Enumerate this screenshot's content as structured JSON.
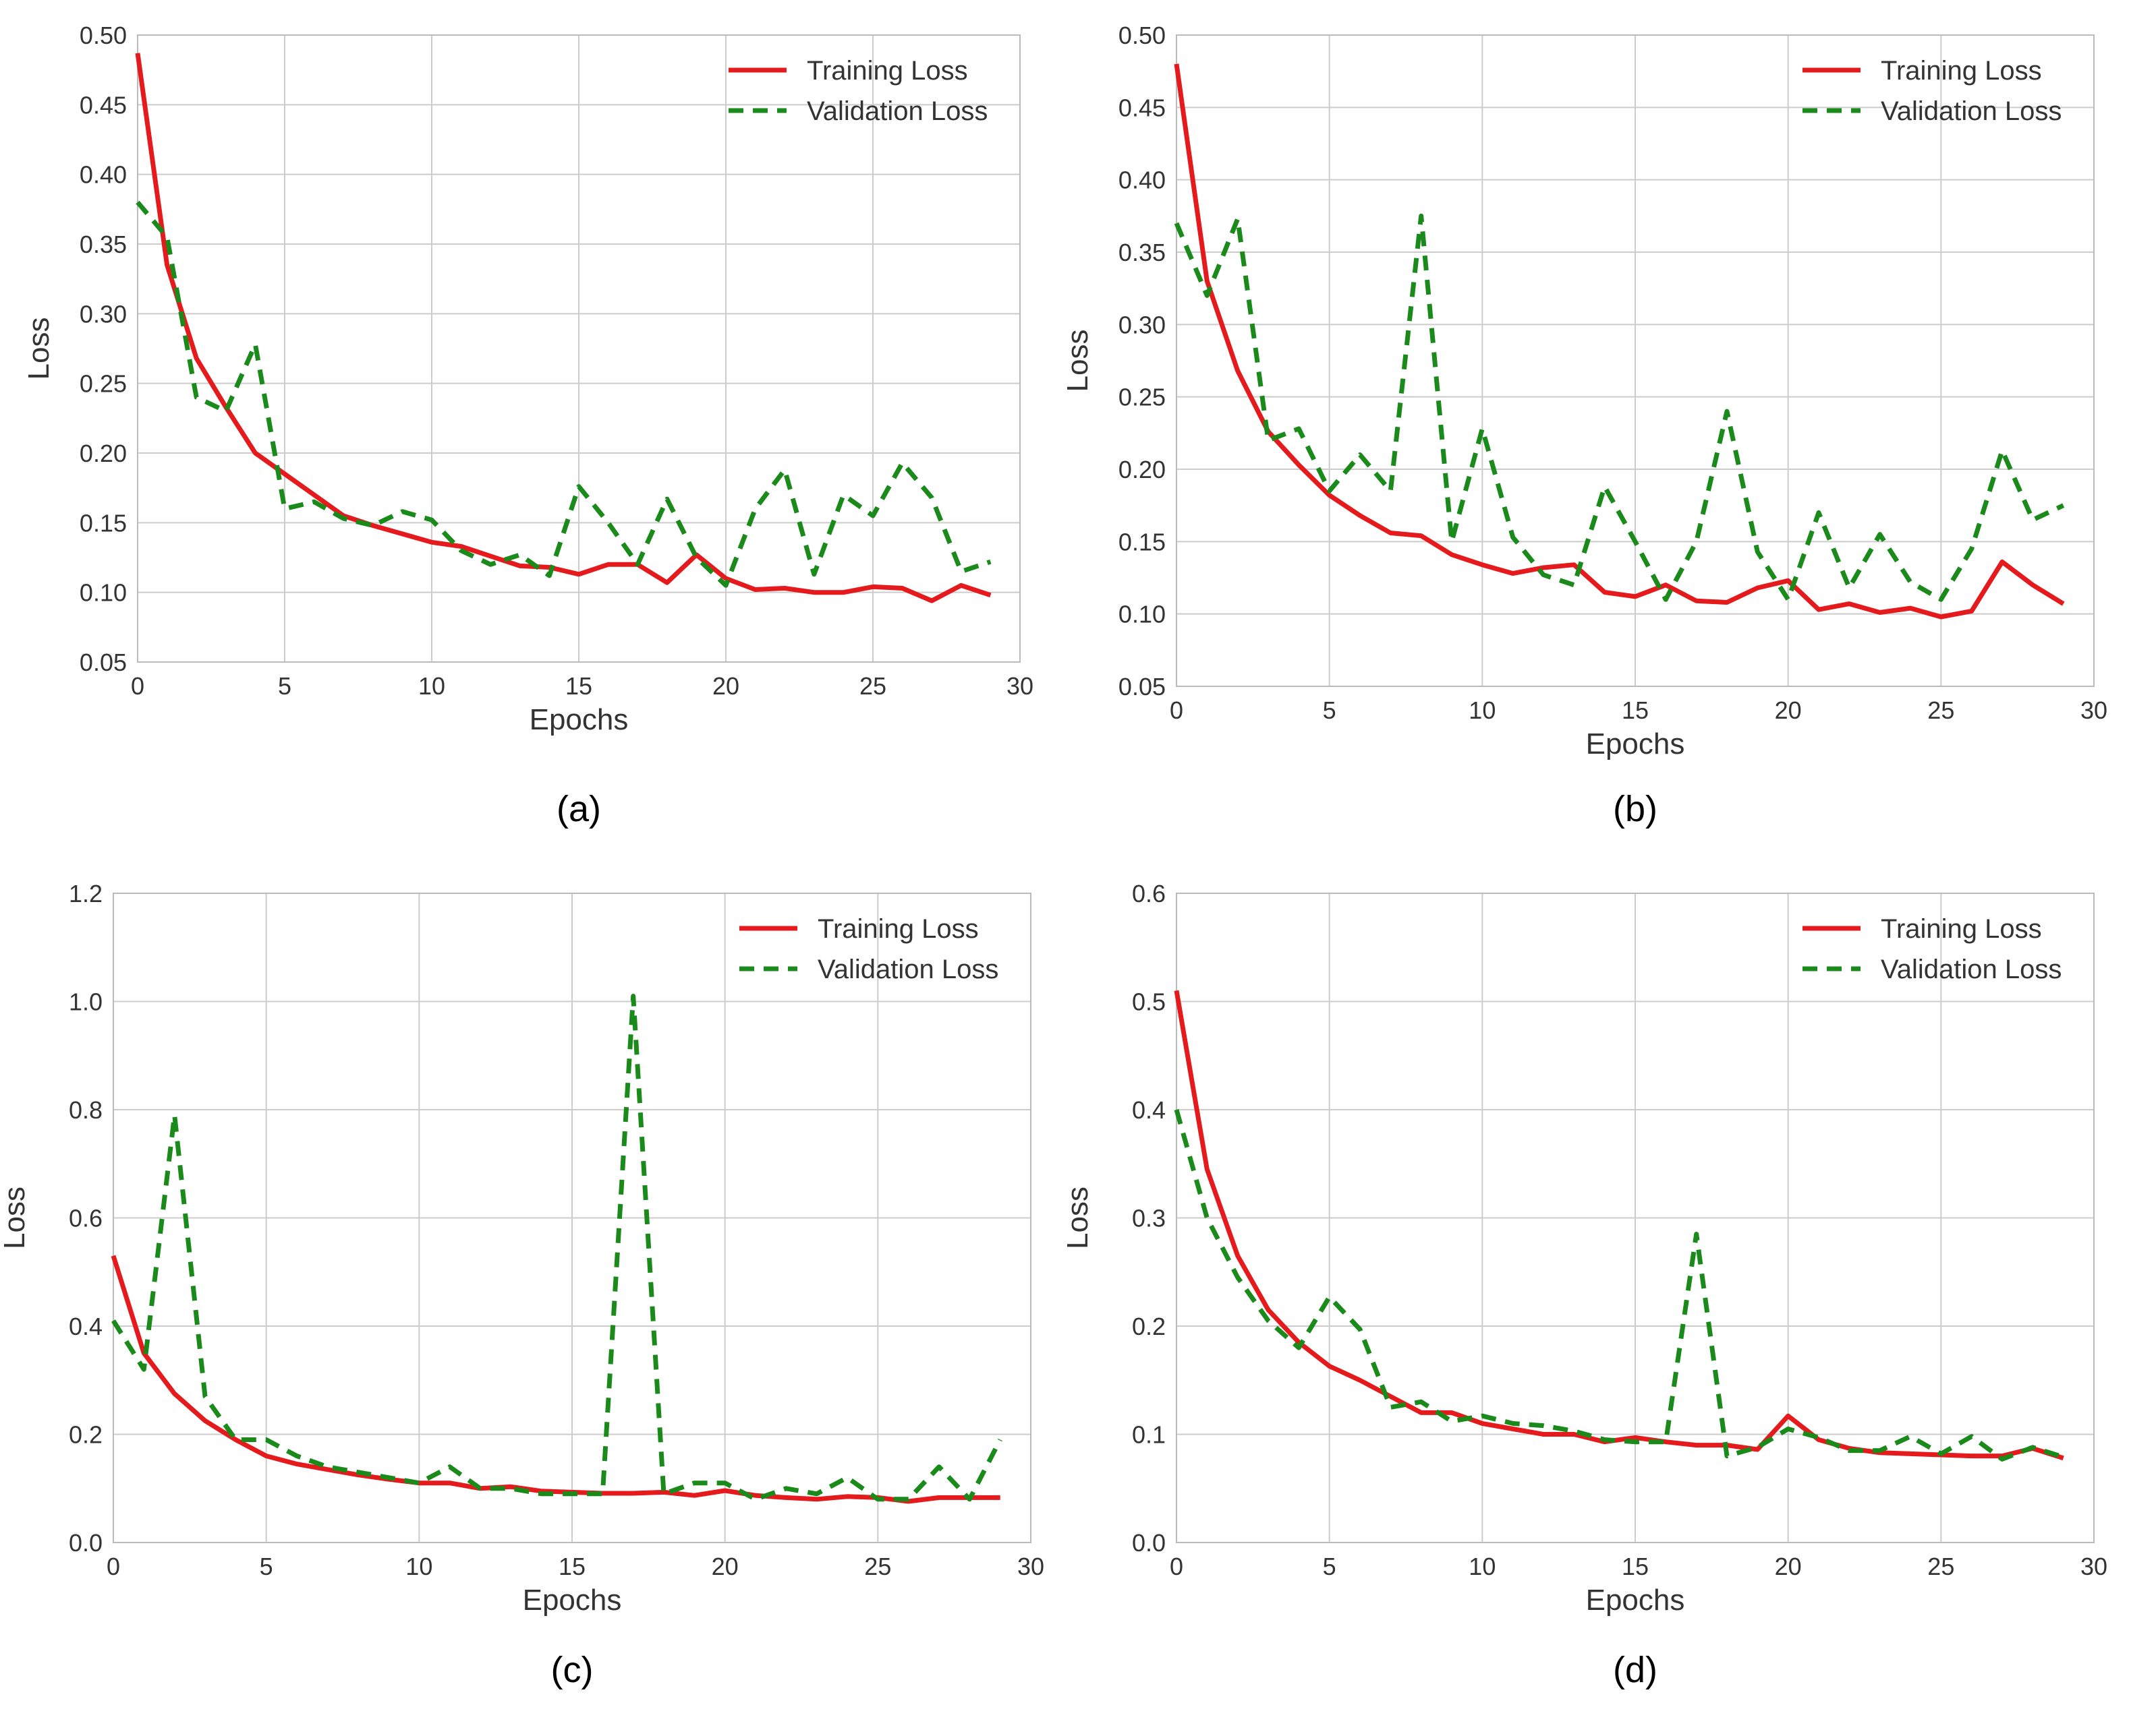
{
  "colors": {
    "training": "#e41a1c",
    "validation": "#1a8a1a",
    "grid": "#cccccc",
    "frame": "#bbbbbb",
    "background": "#ffffff"
  },
  "chart_data": [
    {
      "type": "line",
      "panel": "(a)",
      "title": "",
      "xlabel": "Epochs",
      "ylabel": "Loss",
      "xlim": [
        0,
        30
      ],
      "ylim": [
        0.05,
        0.5
      ],
      "xticks": [
        "0",
        "5",
        "10",
        "15",
        "20",
        "25",
        "30"
      ],
      "yticks": [
        "0.05",
        "0.10",
        "0.15",
        "0.20",
        "0.25",
        "0.30",
        "0.35",
        "0.40",
        "0.45",
        "0.50"
      ],
      "grid": true,
      "legend_position": "top-right",
      "x": [
        0,
        1,
        2,
        3,
        4,
        5,
        6,
        7,
        8,
        9,
        10,
        11,
        12,
        13,
        14,
        15,
        16,
        17,
        18,
        19,
        20,
        21,
        22,
        23,
        24,
        25,
        26,
        27,
        28,
        29
      ],
      "series": [
        {
          "name": "Training Loss",
          "style": "solid",
          "values": [
            0.487,
            0.335,
            0.268,
            0.233,
            0.2,
            0.185,
            0.17,
            0.155,
            0.148,
            0.142,
            0.136,
            0.133,
            0.126,
            0.119,
            0.118,
            0.113,
            0.12,
            0.12,
            0.107,
            0.127,
            0.11,
            0.102,
            0.103,
            0.1,
            0.1,
            0.104,
            0.103,
            0.094,
            0.105,
            0.098
          ]
        },
        {
          "name": "Validation Loss",
          "style": "dashed",
          "values": [
            0.38,
            0.355,
            0.24,
            0.23,
            0.278,
            0.16,
            0.165,
            0.153,
            0.148,
            0.158,
            0.152,
            0.13,
            0.12,
            0.127,
            0.112,
            0.176,
            0.15,
            0.12,
            0.167,
            0.125,
            0.105,
            0.16,
            0.188,
            0.113,
            0.17,
            0.155,
            0.193,
            0.168,
            0.115,
            0.122
          ]
        }
      ]
    },
    {
      "type": "line",
      "panel": "(b)",
      "title": "",
      "xlabel": "Epochs",
      "ylabel": "Loss",
      "xlim": [
        0,
        30
      ],
      "ylim": [
        0.05,
        0.5
      ],
      "xticks": [
        "0",
        "5",
        "10",
        "15",
        "20",
        "25",
        "30"
      ],
      "yticks": [
        "0.05",
        "0.10",
        "0.15",
        "0.20",
        "0.25",
        "0.30",
        "0.35",
        "0.40",
        "0.45",
        "0.50"
      ],
      "grid": true,
      "legend_position": "top-right",
      "x": [
        0,
        1,
        2,
        3,
        4,
        5,
        6,
        7,
        8,
        9,
        10,
        11,
        12,
        13,
        14,
        15,
        16,
        17,
        18,
        19,
        20,
        21,
        22,
        23,
        24,
        25,
        26,
        27,
        28,
        29
      ],
      "series": [
        {
          "name": "Training Loss",
          "style": "solid",
          "values": [
            0.48,
            0.33,
            0.268,
            0.226,
            0.203,
            0.182,
            0.168,
            0.156,
            0.154,
            0.141,
            0.134,
            0.128,
            0.132,
            0.134,
            0.115,
            0.112,
            0.12,
            0.109,
            0.108,
            0.118,
            0.123,
            0.103,
            0.107,
            0.101,
            0.104,
            0.098,
            0.102,
            0.136,
            0.12,
            0.107
          ]
        },
        {
          "name": "Validation Loss",
          "style": "dashed",
          "values": [
            0.37,
            0.32,
            0.373,
            0.22,
            0.228,
            0.185,
            0.21,
            0.185,
            0.375,
            0.15,
            0.228,
            0.153,
            0.127,
            0.12,
            0.188,
            0.15,
            0.11,
            0.15,
            0.24,
            0.143,
            0.11,
            0.17,
            0.118,
            0.155,
            0.122,
            0.11,
            0.145,
            0.213,
            0.165,
            0.175
          ]
        }
      ]
    },
    {
      "type": "line",
      "panel": "(c)",
      "title": "",
      "xlabel": "Epochs",
      "ylabel": "Loss",
      "xlim": [
        0,
        30
      ],
      "ylim": [
        0.0,
        1.2
      ],
      "xticks": [
        "0",
        "5",
        "10",
        "15",
        "20",
        "25",
        "30"
      ],
      "yticks": [
        "0.0",
        "0.2",
        "0.4",
        "0.6",
        "0.8",
        "1.0",
        "1.2"
      ],
      "grid": true,
      "legend_position": "top-right",
      "x": [
        0,
        1,
        2,
        3,
        4,
        5,
        6,
        7,
        8,
        9,
        10,
        11,
        12,
        13,
        14,
        15,
        16,
        17,
        18,
        19,
        20,
        21,
        22,
        23,
        24,
        25,
        26,
        27,
        28,
        29
      ],
      "series": [
        {
          "name": "Training Loss",
          "style": "solid",
          "values": [
            0.53,
            0.35,
            0.275,
            0.225,
            0.19,
            0.16,
            0.145,
            0.135,
            0.125,
            0.117,
            0.11,
            0.11,
            0.1,
            0.103,
            0.095,
            0.093,
            0.091,
            0.091,
            0.093,
            0.087,
            0.096,
            0.087,
            0.083,
            0.08,
            0.085,
            0.083,
            0.076,
            0.083,
            0.083,
            0.083
          ]
        },
        {
          "name": "Validation Loss",
          "style": "dashed",
          "values": [
            0.41,
            0.32,
            0.79,
            0.27,
            0.19,
            0.19,
            0.16,
            0.14,
            0.13,
            0.12,
            0.11,
            0.14,
            0.1,
            0.1,
            0.09,
            0.09,
            0.09,
            1.01,
            0.09,
            0.11,
            0.11,
            0.08,
            0.1,
            0.09,
            0.12,
            0.08,
            0.08,
            0.14,
            0.08,
            0.19
          ]
        }
      ]
    },
    {
      "type": "line",
      "panel": "(d)",
      "title": "",
      "xlabel": "Epochs",
      "ylabel": "Loss",
      "xlim": [
        0,
        30
      ],
      "ylim": [
        0.0,
        0.6
      ],
      "xticks": [
        "0",
        "5",
        "10",
        "15",
        "20",
        "25",
        "30"
      ],
      "yticks": [
        "0.0",
        "0.1",
        "0.2",
        "0.3",
        "0.4",
        "0.5",
        "0.6"
      ],
      "grid": true,
      "legend_position": "top-right",
      "x": [
        0,
        1,
        2,
        3,
        4,
        5,
        6,
        7,
        8,
        9,
        10,
        11,
        12,
        13,
        14,
        15,
        16,
        17,
        18,
        19,
        20,
        21,
        22,
        23,
        24,
        25,
        26,
        27,
        28,
        29
      ],
      "series": [
        {
          "name": "Training Loss",
          "style": "solid",
          "values": [
            0.51,
            0.345,
            0.265,
            0.215,
            0.185,
            0.163,
            0.15,
            0.135,
            0.12,
            0.12,
            0.11,
            0.105,
            0.1,
            0.1,
            0.093,
            0.097,
            0.093,
            0.09,
            0.09,
            0.086,
            0.117,
            0.095,
            0.087,
            0.083,
            0.082,
            0.081,
            0.08,
            0.08,
            0.087,
            0.078
          ]
        },
        {
          "name": "Validation Loss",
          "style": "dashed",
          "values": [
            0.4,
            0.3,
            0.245,
            0.205,
            0.18,
            0.227,
            0.197,
            0.125,
            0.13,
            0.112,
            0.117,
            0.11,
            0.108,
            0.103,
            0.095,
            0.093,
            0.093,
            0.285,
            0.08,
            0.088,
            0.105,
            0.097,
            0.085,
            0.085,
            0.098,
            0.082,
            0.098,
            0.077,
            0.088,
            0.079
          ]
        }
      ]
    }
  ]
}
